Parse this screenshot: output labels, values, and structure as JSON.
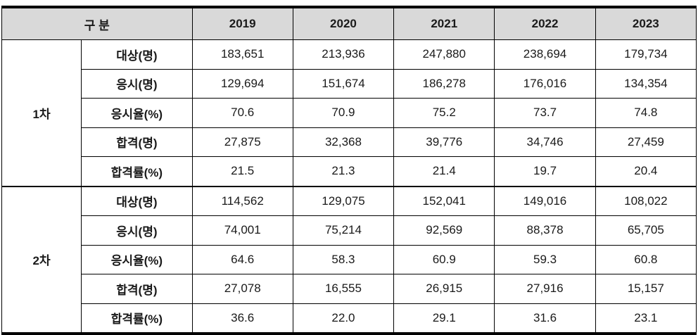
{
  "table": {
    "header": {
      "group_label": "구 분",
      "years": [
        "2019",
        "2020",
        "2021",
        "2022",
        "2023"
      ]
    },
    "sections": [
      {
        "name": "1차",
        "rows": [
          {
            "label": "대상(명)",
            "values": [
              "183,651",
              "213,936",
              "247,880",
              "238,694",
              "179,734"
            ]
          },
          {
            "label": "응시(명)",
            "values": [
              "129,694",
              "151,674",
              "186,278",
              "176,016",
              "134,354"
            ]
          },
          {
            "label": "응시율(%)",
            "values": [
              "70.6",
              "70.9",
              "75.2",
              "73.7",
              "74.8"
            ]
          },
          {
            "label": "합격(명)",
            "values": [
              "27,875",
              "32,368",
              "39,776",
              "34,746",
              "27,459"
            ]
          },
          {
            "label": "합격률(%)",
            "values": [
              "21.5",
              "21.3",
              "21.4",
              "19.7",
              "20.4"
            ]
          }
        ]
      },
      {
        "name": "2차",
        "rows": [
          {
            "label": "대상(명)",
            "values": [
              "114,562",
              "129,075",
              "152,041",
              "149,016",
              "108,022"
            ]
          },
          {
            "label": "응시(명)",
            "values": [
              "74,001",
              "75,214",
              "92,569",
              "88,378",
              "65,705"
            ]
          },
          {
            "label": "응시율(%)",
            "values": [
              "64.6",
              "58.3",
              "60.9",
              "59.3",
              "60.8"
            ]
          },
          {
            "label": "합격(명)",
            "values": [
              "27,078",
              "16,555",
              "26,915",
              "27,916",
              "15,157"
            ]
          },
          {
            "label": "합격률(%)",
            "values": [
              "36.6",
              "22.0",
              "29.1",
              "31.6",
              "23.1"
            ]
          }
        ]
      }
    ],
    "colors": {
      "header_bg": "#d9d9d9",
      "border": "#000000",
      "text": "#1a1a1a"
    }
  }
}
